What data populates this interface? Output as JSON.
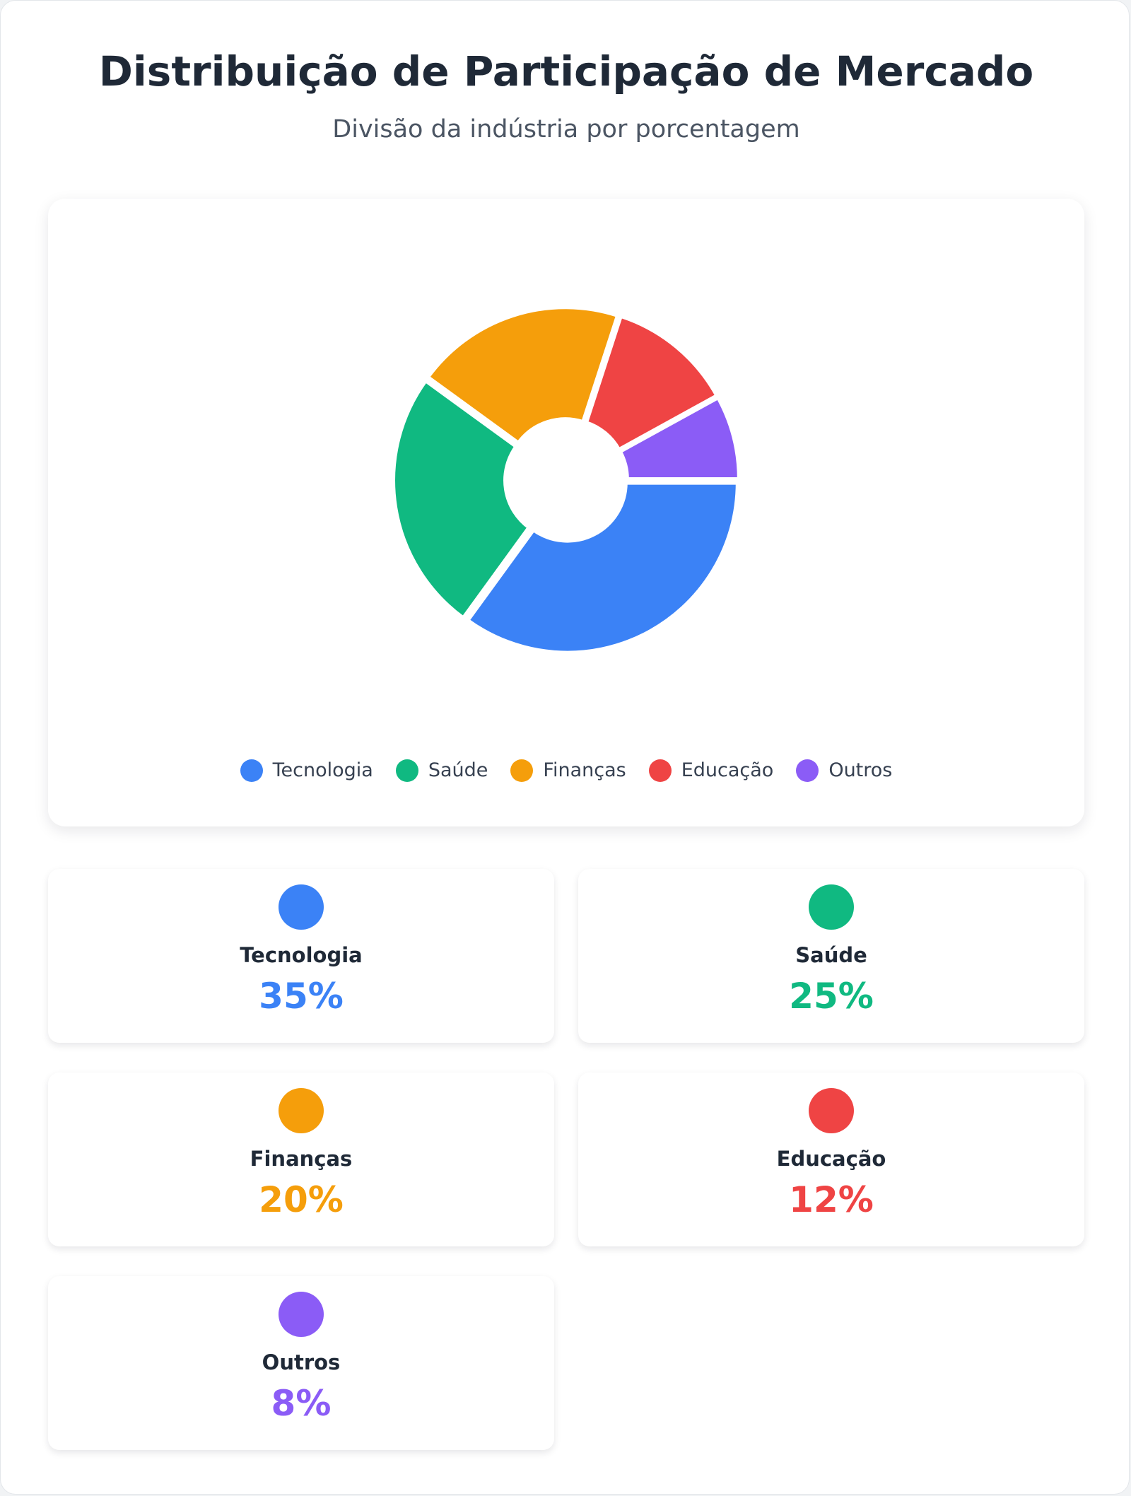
{
  "header": {
    "title": "Distribuição de Participação de Mercado",
    "subtitle": "Divisão da indústria por porcentagem"
  },
  "chart_data": {
    "type": "pie",
    "style": "donut",
    "title": "Distribuição de Participação de Mercado",
    "subtitle": "Divisão da indústria por porcentagem",
    "legend_position": "bottom",
    "categories": [
      "Tecnologia",
      "Saúde",
      "Finanças",
      "Educação",
      "Outros"
    ],
    "values": [
      35,
      25,
      20,
      12,
      8
    ],
    "colors": [
      "#3b82f6",
      "#10b981",
      "#f59e0b",
      "#ef4444",
      "#8b5cf6"
    ]
  },
  "stats": [
    {
      "label": "Tecnologia",
      "value": "35%",
      "color": "#3b82f6"
    },
    {
      "label": "Saúde",
      "value": "25%",
      "color": "#10b981"
    },
    {
      "label": "Finanças",
      "value": "20%",
      "color": "#f59e0b"
    },
    {
      "label": "Educação",
      "value": "12%",
      "color": "#ef4444"
    },
    {
      "label": "Outros",
      "value": "8%",
      "color": "#8b5cf6"
    }
  ]
}
